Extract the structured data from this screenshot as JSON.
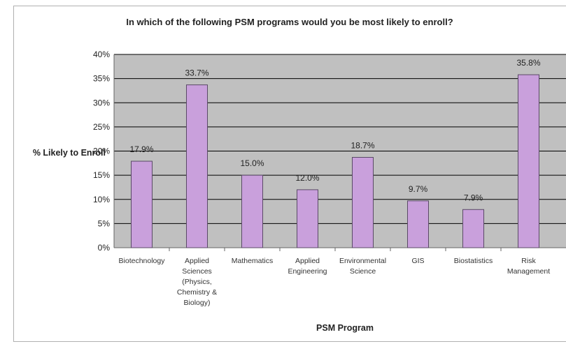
{
  "chart_data": {
    "type": "bar",
    "title": "In which of the following PSM programs would you be most likely to enroll?",
    "xlabel": "PSM Program",
    "ylabel": "% Likely to Enroll",
    "categories": [
      [
        "Biotechnology"
      ],
      [
        "Applied",
        "Sciences",
        "(Physics,",
        "Chemistry &",
        "Biology)"
      ],
      [
        "Mathematics"
      ],
      [
        "Applied",
        "Engineering"
      ],
      [
        "Environmental",
        "Science"
      ],
      [
        "GIS"
      ],
      [
        "Biostatistics"
      ],
      [
        "Risk",
        "Management"
      ]
    ],
    "values": [
      17.9,
      33.7,
      15.0,
      12.0,
      18.7,
      9.7,
      7.9,
      35.8
    ],
    "data_labels": [
      "17.9%",
      "33.7%",
      "15.0%",
      "12.0%",
      "18.7%",
      "9.7%",
      "7.9%",
      "35.8%"
    ],
    "yticks": [
      "0%",
      "5%",
      "10%",
      "15%",
      "20%",
      "25%",
      "30%",
      "35%",
      "40%"
    ],
    "ytick_values": [
      0,
      5,
      10,
      15,
      20,
      25,
      30,
      35,
      40
    ],
    "ylim": [
      0,
      40
    ],
    "grid": true,
    "legend": "none",
    "colors": {
      "bar_fill": "#c9a0dc",
      "bar_stroke": "#5a4a66",
      "plot_bg": "#c0c0c0",
      "grid": "#000000"
    }
  }
}
